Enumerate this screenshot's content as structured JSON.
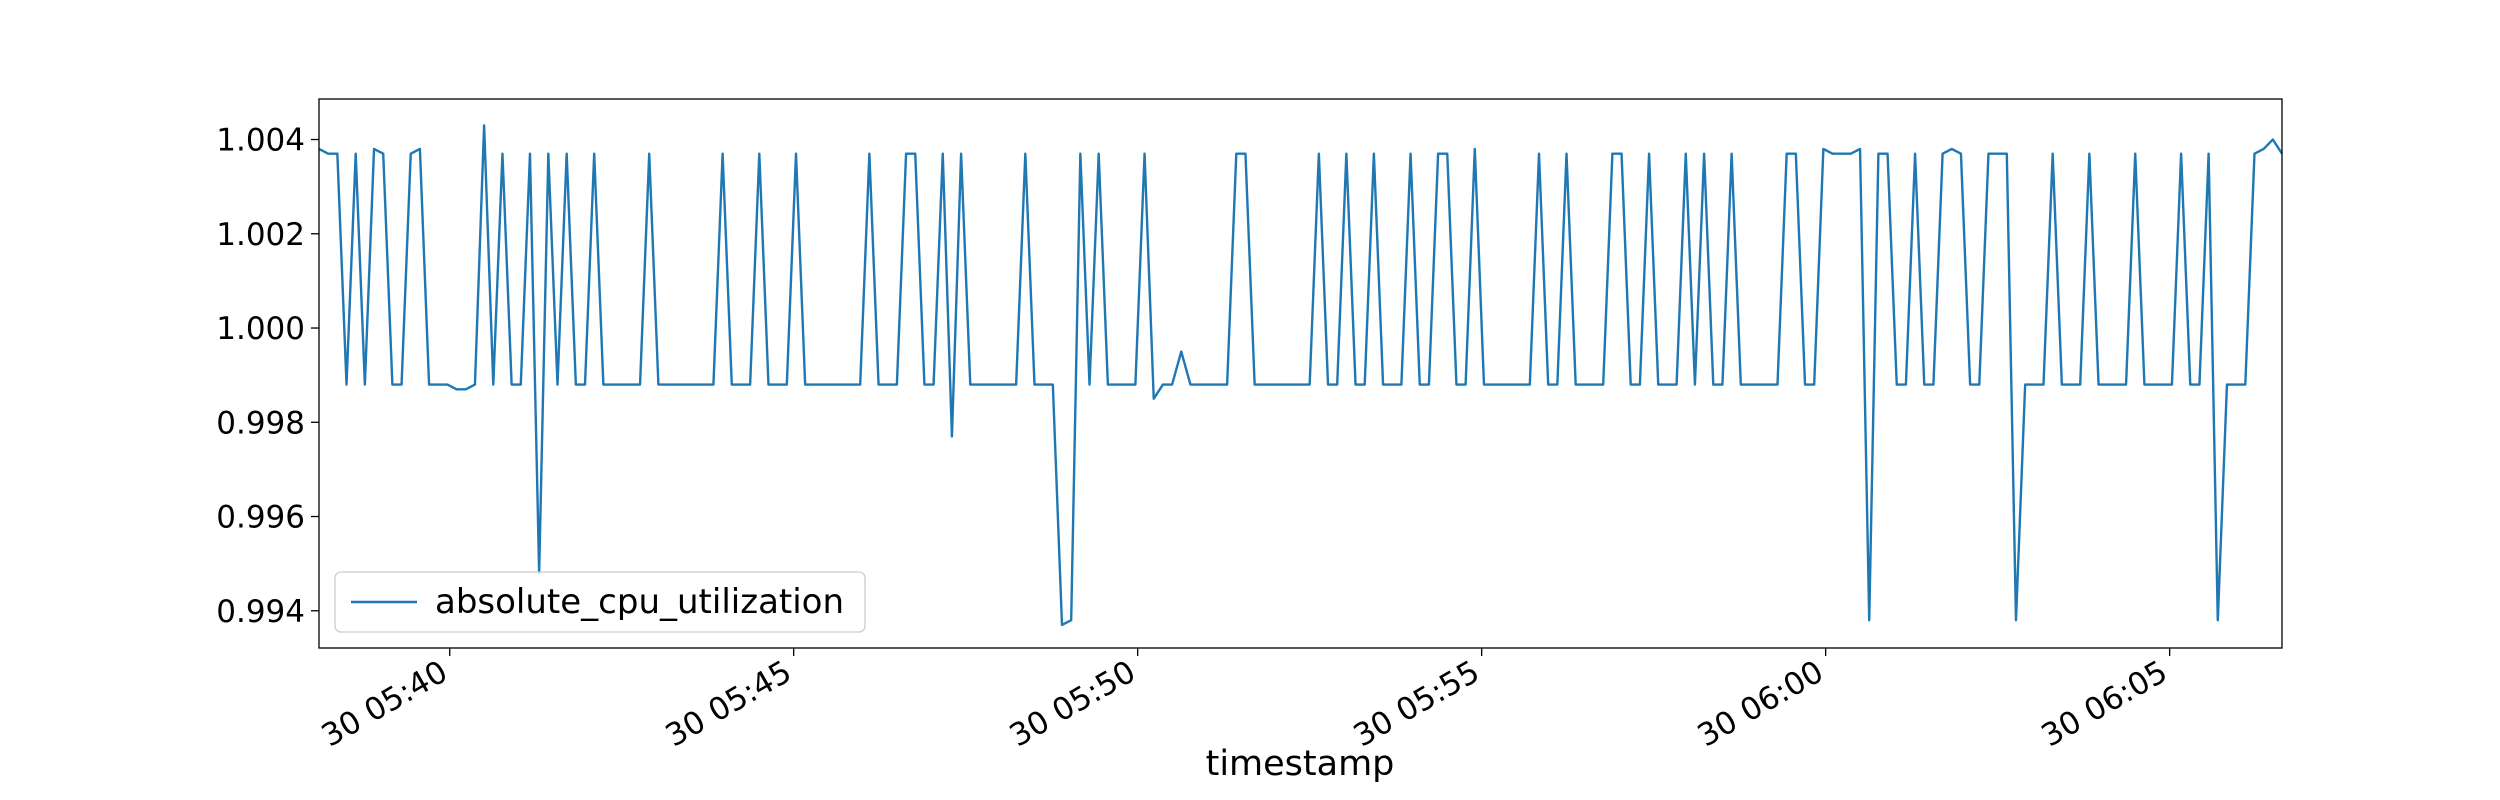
{
  "chart_data": {
    "type": "line",
    "x_label": "timestamp",
    "x": [
      "30 05:38:06",
      "30 05:38:14",
      "30 05:38:22",
      "30 05:38:30",
      "30 05:38:38",
      "30 05:38:46",
      "30 05:38:54",
      "30 05:39:02",
      "30 05:39:10",
      "30 05:39:18",
      "30 05:39:26",
      "30 05:39:34",
      "30 05:39:42",
      "30 05:39:50",
      "30 05:39:58",
      "30 05:40:06",
      "30 05:40:14",
      "30 05:40:22",
      "30 05:40:30",
      "30 05:40:38",
      "30 05:40:46",
      "30 05:40:54",
      "30 05:41:02",
      "30 05:41:10",
      "30 05:41:18",
      "30 05:41:26",
      "30 05:41:34",
      "30 05:41:42",
      "30 05:41:50",
      "30 05:41:58",
      "30 05:42:06",
      "30 05:42:14",
      "30 05:42:22",
      "30 05:42:30",
      "30 05:42:38",
      "30 05:42:46",
      "30 05:42:54",
      "30 05:43:02",
      "30 05:43:10",
      "30 05:43:18",
      "30 05:43:26",
      "30 05:43:34",
      "30 05:43:42",
      "30 05:43:50",
      "30 05:43:58",
      "30 05:44:06",
      "30 05:44:14",
      "30 05:44:22",
      "30 05:44:30",
      "30 05:44:38",
      "30 05:44:46",
      "30 05:44:54",
      "30 05:45:02",
      "30 05:45:10",
      "30 05:45:18",
      "30 05:45:26",
      "30 05:45:34",
      "30 05:45:42",
      "30 05:45:50",
      "30 05:45:58",
      "30 05:46:06",
      "30 05:46:14",
      "30 05:46:22",
      "30 05:46:30",
      "30 05:46:38",
      "30 05:46:46",
      "30 05:46:54",
      "30 05:47:02",
      "30 05:47:10",
      "30 05:47:18",
      "30 05:47:26",
      "30 05:47:34",
      "30 05:47:42",
      "30 05:47:50",
      "30 05:47:58",
      "30 05:48:06",
      "30 05:48:14",
      "30 05:48:22",
      "30 05:48:30",
      "30 05:48:38",
      "30 05:48:46",
      "30 05:48:54",
      "30 05:49:02",
      "30 05:49:10",
      "30 05:49:18",
      "30 05:49:26",
      "30 05:49:34",
      "30 05:49:42",
      "30 05:49:50",
      "30 05:49:58",
      "30 05:50:06",
      "30 05:50:14",
      "30 05:50:22",
      "30 05:50:30",
      "30 05:50:38",
      "30 05:50:46",
      "30 05:50:54",
      "30 05:51:02",
      "30 05:51:10",
      "30 05:51:18",
      "30 05:51:26",
      "30 05:51:34",
      "30 05:51:42",
      "30 05:51:50",
      "30 05:51:58",
      "30 05:52:06",
      "30 05:52:14",
      "30 05:52:22",
      "30 05:52:30",
      "30 05:52:38",
      "30 05:52:46",
      "30 05:52:54",
      "30 05:53:02",
      "30 05:53:10",
      "30 05:53:18",
      "30 05:53:26",
      "30 05:53:34",
      "30 05:53:42",
      "30 05:53:50",
      "30 05:53:58",
      "30 05:54:06",
      "30 05:54:14",
      "30 05:54:22",
      "30 05:54:30",
      "30 05:54:38",
      "30 05:54:46",
      "30 05:54:54",
      "30 05:55:02",
      "30 05:55:10",
      "30 05:55:18",
      "30 05:55:26",
      "30 05:55:34",
      "30 05:55:42",
      "30 05:55:50",
      "30 05:55:58",
      "30 05:56:06",
      "30 05:56:14",
      "30 05:56:22",
      "30 05:56:30",
      "30 05:56:38",
      "30 05:56:46",
      "30 05:56:54",
      "30 05:57:02",
      "30 05:57:10",
      "30 05:57:18",
      "30 05:57:26",
      "30 05:57:34",
      "30 05:57:42",
      "30 05:57:50",
      "30 05:57:58",
      "30 05:58:06",
      "30 05:58:14",
      "30 05:58:22",
      "30 05:58:30",
      "30 05:58:38",
      "30 05:58:46",
      "30 05:58:54",
      "30 05:59:02",
      "30 05:59:10",
      "30 05:59:18",
      "30 05:59:26",
      "30 05:59:34",
      "30 05:59:42",
      "30 05:59:50",
      "30 05:59:58",
      "30 06:00:06",
      "30 06:00:14",
      "30 06:00:22",
      "30 06:00:30",
      "30 06:00:38",
      "30 06:00:46",
      "30 06:00:54",
      "30 06:01:02",
      "30 06:01:10",
      "30 06:01:18",
      "30 06:01:26",
      "30 06:01:34",
      "30 06:01:42",
      "30 06:01:50",
      "30 06:01:58",
      "30 06:02:06",
      "30 06:02:14",
      "30 06:02:22",
      "30 06:02:30",
      "30 06:02:38",
      "30 06:02:46",
      "30 06:02:54",
      "30 06:03:02",
      "30 06:03:10",
      "30 06:03:18",
      "30 06:03:26",
      "30 06:03:34",
      "30 06:03:42",
      "30 06:03:50",
      "30 06:03:58",
      "30 06:04:06",
      "30 06:04:14",
      "30 06:04:22",
      "30 06:04:30",
      "30 06:04:38",
      "30 06:04:46",
      "30 06:04:54",
      "30 06:05:02",
      "30 06:05:10",
      "30 06:05:18",
      "30 06:05:26",
      "30 06:05:34",
      "30 06:05:42",
      "30 06:05:50",
      "30 06:05:58",
      "30 06:06:06",
      "30 06:06:14",
      "30 06:06:22",
      "30 06:06:30",
      "30 06:06:38"
    ],
    "series": [
      {
        "name": "absolute_cpu_utilization",
        "color": "#1f77b4",
        "values": [
          1.0038,
          1.0037,
          1.0037,
          0.9988,
          1.0037,
          0.9988,
          1.0038,
          1.0037,
          0.9988,
          0.9988,
          1.0037,
          1.0038,
          0.9988,
          0.9988,
          0.9988,
          0.9987,
          0.9987,
          0.9988,
          1.0043,
          0.9988,
          1.0037,
          0.9988,
          0.9988,
          1.0037,
          0.9948,
          1.0037,
          0.9988,
          1.0037,
          0.9988,
          0.9988,
          1.0037,
          0.9988,
          0.9988,
          0.9988,
          0.9988,
          0.9988,
          1.0037,
          0.9988,
          0.9988,
          0.9988,
          0.9988,
          0.9988,
          0.9988,
          0.9988,
          1.0037,
          0.9988,
          0.9988,
          0.9988,
          1.0037,
          0.9988,
          0.9988,
          0.9988,
          1.0037,
          0.9988,
          0.9988,
          0.9988,
          0.9988,
          0.9988,
          0.9988,
          0.9988,
          1.0037,
          0.9988,
          0.9988,
          0.9988,
          1.0037,
          1.0037,
          0.9988,
          0.9988,
          1.0037,
          0.9977,
          1.0037,
          0.9988,
          0.9988,
          0.9988,
          0.9988,
          0.9988,
          0.9988,
          1.0037,
          0.9988,
          0.9988,
          0.9988,
          0.9937,
          0.9938,
          1.0037,
          0.9988,
          1.0037,
          0.9988,
          0.9988,
          0.9988,
          0.9988,
          1.0037,
          0.9985,
          0.9988,
          0.9988,
          0.9995,
          0.9988,
          0.9988,
          0.9988,
          0.9988,
          0.9988,
          1.0037,
          1.0037,
          0.9988,
          0.9988,
          0.9988,
          0.9988,
          0.9988,
          0.9988,
          0.9988,
          1.0037,
          0.9988,
          0.9988,
          1.0037,
          0.9988,
          0.9988,
          1.0037,
          0.9988,
          0.9988,
          0.9988,
          1.0037,
          0.9988,
          0.9988,
          1.0037,
          1.0037,
          0.9988,
          0.9988,
          1.0038,
          0.9988,
          0.9988,
          0.9988,
          0.9988,
          0.9988,
          0.9988,
          1.0037,
          0.9988,
          0.9988,
          1.0037,
          0.9988,
          0.9988,
          0.9988,
          0.9988,
          1.0037,
          1.0037,
          0.9988,
          0.9988,
          1.0037,
          0.9988,
          0.9988,
          0.9988,
          1.0037,
          0.9988,
          1.0037,
          0.9988,
          0.9988,
          1.0037,
          0.9988,
          0.9988,
          0.9988,
          0.9988,
          0.9988,
          1.0037,
          1.0037,
          0.9988,
          0.9988,
          1.0038,
          1.0037,
          1.0037,
          1.0037,
          1.0038,
          0.9938,
          1.0037,
          1.0037,
          0.9988,
          0.9988,
          1.0037,
          0.9988,
          0.9988,
          1.0037,
          1.0038,
          1.0037,
          0.9988,
          0.9988,
          1.0037,
          1.0037,
          1.0037,
          0.9938,
          0.9988,
          0.9988,
          0.9988,
          1.0037,
          0.9988,
          0.9988,
          0.9988,
          1.0037,
          0.9988,
          0.9988,
          0.9988,
          0.9988,
          1.0037,
          0.9988,
          0.9988,
          0.9988,
          0.9988,
          1.0037,
          0.9988,
          0.9988,
          1.0037,
          0.9938,
          0.9988,
          0.9988,
          0.9988,
          1.0037,
          1.0038,
          1.004,
          1.0037
        ]
      }
    ],
    "xlim": [
      "30 05:38:06",
      "30 06:06:38"
    ],
    "xticks": [
      {
        "value": "30 05:40:00",
        "label": "30 05:40"
      },
      {
        "value": "30 05:45:00",
        "label": "30 05:45"
      },
      {
        "value": "30 05:50:00",
        "label": "30 05:50"
      },
      {
        "value": "30 05:55:00",
        "label": "30 05:55"
      },
      {
        "value": "30 06:00:00",
        "label": "30 06:00"
      },
      {
        "value": "30 06:05:00",
        "label": "30 06:05"
      }
    ],
    "ylim": [
      0.99321,
      1.00486
    ],
    "yticks": [
      0.994,
      0.996,
      0.998,
      {
        "value": 1,
        "label": "1.000"
      },
      1.002,
      1.004
    ],
    "grid": false,
    "legend": "lower left"
  }
}
